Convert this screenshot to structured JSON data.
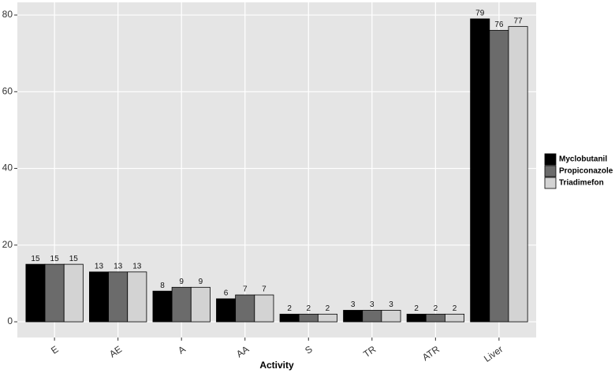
{
  "chart_data": {
    "type": "bar",
    "x_label": "Activity",
    "categories": [
      "E",
      "AE",
      "A",
      "AA",
      "S",
      "TR",
      "ATR",
      "Liver"
    ],
    "series": [
      {
        "name": "Myclobutanil",
        "color": "#000000",
        "values": [
          15,
          13,
          8,
          6,
          2,
          3,
          2,
          79
        ]
      },
      {
        "name": "Propiconazole",
        "color": "#6b6b6b",
        "values": [
          15,
          13,
          9,
          7,
          2,
          3,
          2,
          76
        ]
      },
      {
        "name": "Triadimefon",
        "color": "#d3d3d3",
        "values": [
          15,
          13,
          9,
          7,
          2,
          3,
          2,
          77
        ]
      }
    ],
    "ylim": [
      -4.1,
      83.3
    ],
    "yticks": [
      0,
      20,
      40,
      60,
      80
    ],
    "grid": true,
    "legend": "right"
  }
}
